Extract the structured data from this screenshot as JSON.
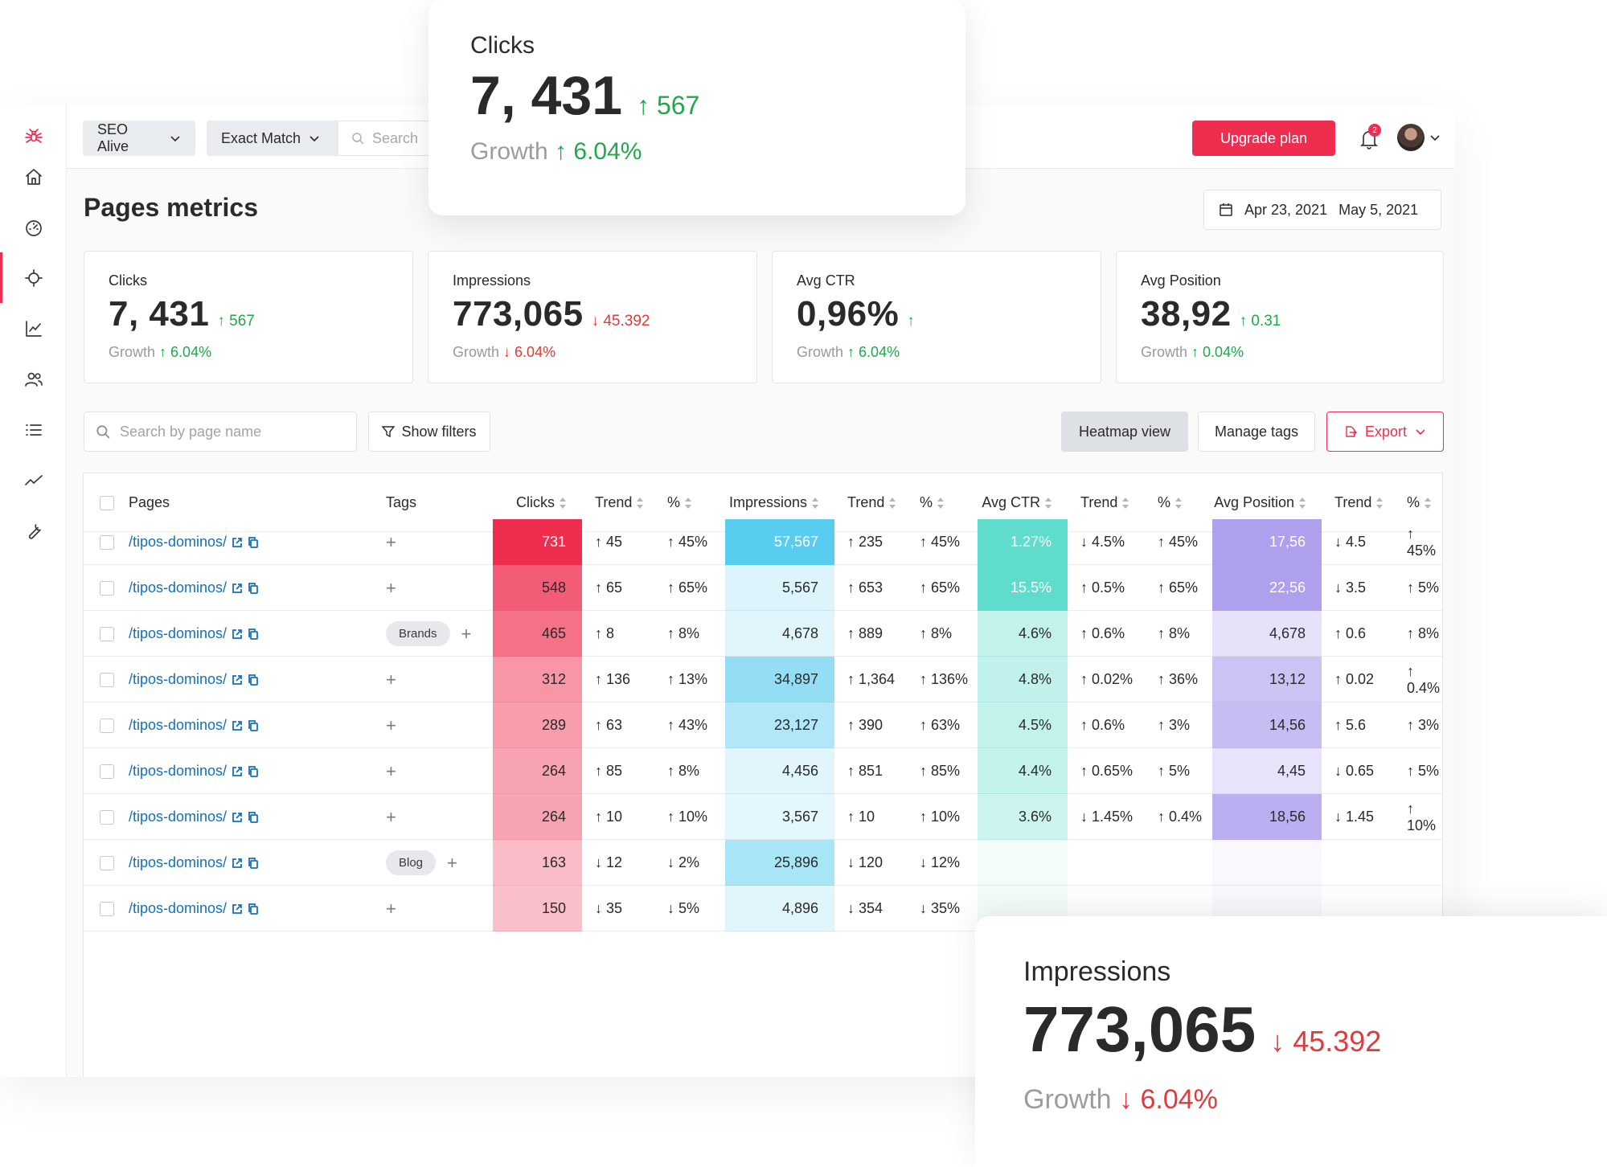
{
  "topbar": {
    "project": "SEO Alive",
    "match": "Exact Match",
    "search_placeholder": "Search",
    "upgrade": "Upgrade plan",
    "notifications": "2"
  },
  "page": {
    "title": "Pages metrics",
    "date_from": "Apr 23, 2021",
    "date_to": "May 5, 2021"
  },
  "kpis": [
    {
      "label": "Clicks",
      "value": "7, 431",
      "delta": "↑ 567",
      "growth_label": "Growth",
      "growth": "↑ 6.04%"
    },
    {
      "label": "Impressions",
      "value": "773,065",
      "delta": "↓ 45.392",
      "growth_label": "Growth",
      "growth": "↓ 6.04%"
    },
    {
      "label": "Avg CTR",
      "value": "0,96%",
      "delta": "↑",
      "growth_label": "Growth",
      "growth": "↑ 6.04%"
    },
    {
      "label": "Avg Position",
      "value": "38,92",
      "delta": "↑ 0.31",
      "growth_label": "Growth",
      "growth": "↑ 0.04%"
    }
  ],
  "toolbar": {
    "search_placeholder": "Search by page name",
    "filters": "Show filters",
    "heatmap": "Heatmap view",
    "manage_tags": "Manage tags",
    "export": "Export"
  },
  "table": {
    "headers": [
      "Pages",
      "Tags",
      "Clicks",
      "Trend",
      "%",
      "Impressions",
      "Trend",
      "%",
      "Avg CTR",
      "Trend",
      "%",
      "Avg Position",
      "Trend",
      "%"
    ],
    "rows": [
      {
        "page": "/tipos-dominos/",
        "tag": "",
        "clicks": "731",
        "c_trend": "↑ 45",
        "c_pct": "↑ 45%",
        "impr": "57,567",
        "i_trend": "↑ 235",
        "i_pct": "↑ 45%",
        "ctr": "1.27%",
        "t_trend": "↓ 4.5%",
        "t_pct": "↑ 45%",
        "pos": "17,56",
        "p_trend": "↓ 4.5",
        "p_pct": "↑ 45%"
      },
      {
        "page": "/tipos-dominos/",
        "tag": "",
        "clicks": "548",
        "c_trend": "↑ 65",
        "c_pct": "↑ 65%",
        "impr": "5,567",
        "i_trend": "↑ 653",
        "i_pct": "↑ 65%",
        "ctr": "15.5%",
        "t_trend": "↑ 0.5%",
        "t_pct": "↑ 65%",
        "pos": "22,56",
        "p_trend": "↓ 3.5",
        "p_pct": "↑ 5%"
      },
      {
        "page": "/tipos-dominos/",
        "tag": "Brands",
        "clicks": "465",
        "c_trend": "↑ 8",
        "c_pct": "↑ 8%",
        "impr": "4,678",
        "i_trend": "↑ 889",
        "i_pct": "↑ 8%",
        "ctr": "4.6%",
        "t_trend": "↑ 0.6%",
        "t_pct": "↑ 8%",
        "pos": "4,678",
        "p_trend": "↑ 0.6",
        "p_pct": "↑ 8%"
      },
      {
        "page": "/tipos-dominos/",
        "tag": "",
        "clicks": "312",
        "c_trend": "↑ 136",
        "c_pct": "↑ 13%",
        "impr": "34,897",
        "i_trend": "↑ 1,364",
        "i_pct": "↑ 136%",
        "ctr": "4.8%",
        "t_trend": "↑ 0.02%",
        "t_pct": "↑ 36%",
        "pos": "13,12",
        "p_trend": "↑ 0.02",
        "p_pct": "↑ 0.4%"
      },
      {
        "page": "/tipos-dominos/",
        "tag": "",
        "clicks": "289",
        "c_trend": "↑ 63",
        "c_pct": "↑ 43%",
        "impr": "23,127",
        "i_trend": "↑ 390",
        "i_pct": "↑ 63%",
        "ctr": "4.5%",
        "t_trend": "↑ 0.6%",
        "t_pct": "↑ 3%",
        "pos": "14,56",
        "p_trend": "↑ 5.6",
        "p_pct": "↑ 3%"
      },
      {
        "page": "/tipos-dominos/",
        "tag": "",
        "clicks": "264",
        "c_trend": "↑ 85",
        "c_pct": "↑ 8%",
        "impr": "4,456",
        "i_trend": "↑ 851",
        "i_pct": "↑ 85%",
        "ctr": "4.4%",
        "t_trend": "↑ 0.65%",
        "t_pct": "↑ 5%",
        "pos": "4,45",
        "p_trend": "↓ 0.65",
        "p_pct": "↑ 5%"
      },
      {
        "page": "/tipos-dominos/",
        "tag": "",
        "clicks": "264",
        "c_trend": "↑ 10",
        "c_pct": "↑ 10%",
        "impr": "3,567",
        "i_trend": "↑ 10",
        "i_pct": "↑ 10%",
        "ctr": "3.6%",
        "t_trend": "↓ 1.45%",
        "t_pct": "↑ 0.4%",
        "pos": "18,56",
        "p_trend": "↓ 1.45",
        "p_pct": "↑ 10%"
      },
      {
        "page": "/tipos-dominos/",
        "tag": "Blog",
        "clicks": "163",
        "c_trend": "↓ 12",
        "c_pct": "↓ 2%",
        "impr": "25,896",
        "i_trend": "↓ 120",
        "i_pct": "↓ 12%",
        "ctr": "",
        "t_trend": "",
        "t_pct": "",
        "pos": "",
        "p_trend": "",
        "p_pct": ""
      },
      {
        "page": "/tipos-dominos/",
        "tag": "",
        "clicks": "150",
        "c_trend": "↓ 35",
        "c_pct": "↓ 5%",
        "impr": "4,896",
        "i_trend": "↓ 354",
        "i_pct": "↓ 35%",
        "ctr": "",
        "t_trend": "",
        "t_pct": "",
        "pos": "",
        "p_trend": "",
        "p_pct": ""
      }
    ]
  },
  "cards": {
    "clicks": {
      "label": "Clicks",
      "value": "7, 431",
      "delta": "↑ 567",
      "growth_label": "Growth",
      "growth": "↑ 6.04%"
    },
    "impressions": {
      "label": "Impressions",
      "value": "773,065",
      "delta": "↓ 45.392",
      "growth_label": "Growth",
      "growth": "↓ 6.04%"
    }
  },
  "colors": {
    "accent": "#ef2e4f",
    "up": "#21a84a",
    "down": "#e03a3a",
    "link": "#1570b8"
  },
  "sidebar_icons": [
    "spider-logo-icon",
    "home-icon",
    "dashboard-icon",
    "crosshair-icon",
    "chart-icon",
    "users-icon",
    "list-icon",
    "trend-icon",
    "wrench-icon"
  ]
}
